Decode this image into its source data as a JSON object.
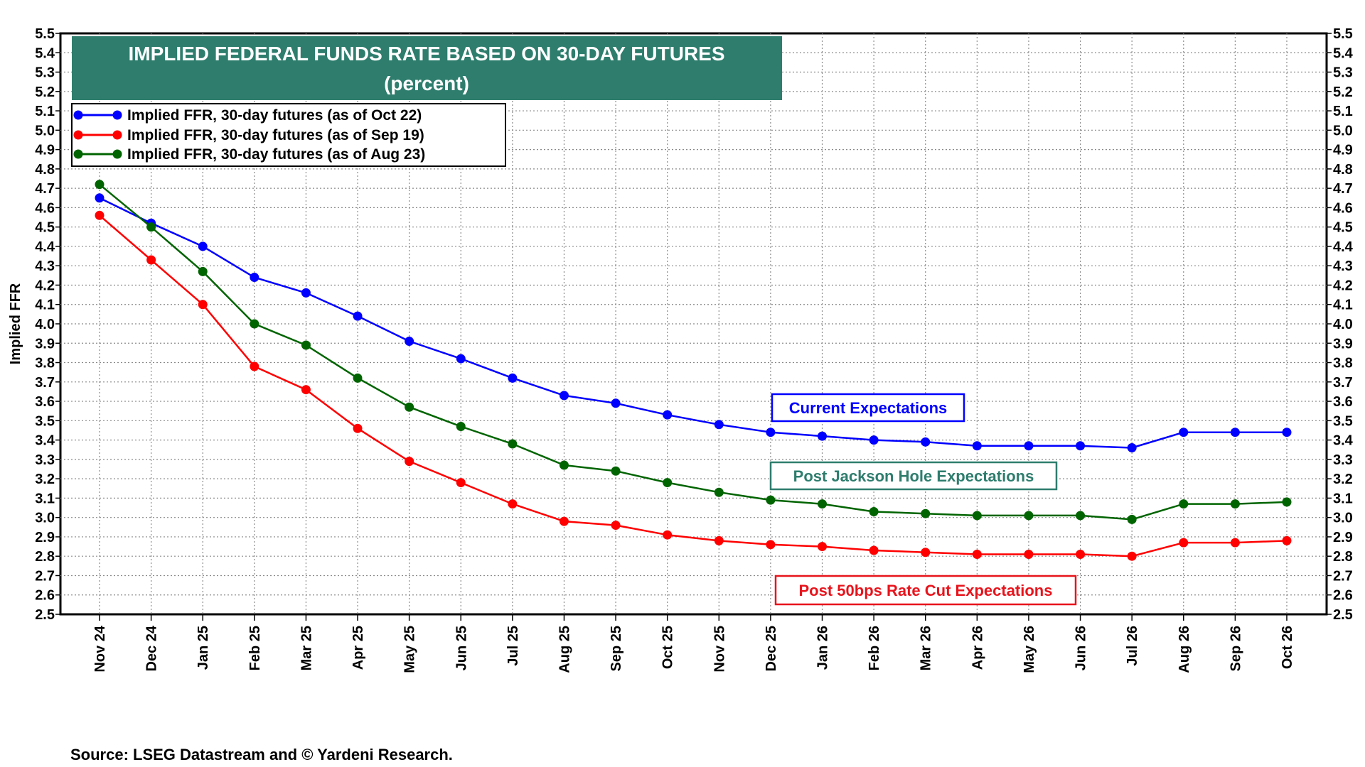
{
  "chart_data": {
    "type": "line",
    "title": "IMPLIED FEDERAL FUNDS RATE BASED ON 30-DAY FUTURES",
    "subtitle": "(percent)",
    "ylabel": "Implied FFR",
    "xlabel": "",
    "ylim": [
      2.5,
      5.5
    ],
    "yticks": [
      "5.5",
      "5.4",
      "5.3",
      "5.2",
      "5.1",
      "5.0",
      "4.9",
      "4.8",
      "4.7",
      "4.6",
      "4.5",
      "4.4",
      "4.3",
      "4.2",
      "4.1",
      "4.0",
      "3.9",
      "3.8",
      "3.7",
      "3.6",
      "3.5",
      "3.4",
      "3.3",
      "3.2",
      "3.1",
      "3.0",
      "2.9",
      "2.8",
      "2.7",
      "2.6",
      "2.5"
    ],
    "categories": [
      "Nov 24",
      "Dec 24",
      "Jan 25",
      "Feb 25",
      "Mar 25",
      "Apr 25",
      "May 25",
      "Jun 25",
      "Jul 25",
      "Aug 25",
      "Sep 25",
      "Oct 25",
      "Nov 25",
      "Dec 25",
      "Jan 26",
      "Feb 26",
      "Mar 26",
      "Apr 26",
      "May 26",
      "Jun 26",
      "Jul 26",
      "Aug 26",
      "Sep 26",
      "Oct 26"
    ],
    "grid": true,
    "legend_position": "top-left",
    "series": [
      {
        "name": "Implied FFR, 30-day futures (as of Oct 22)",
        "color": "#0000ff",
        "values": [
          4.65,
          4.52,
          4.4,
          4.24,
          4.16,
          4.04,
          3.91,
          3.82,
          3.72,
          3.63,
          3.59,
          3.53,
          3.48,
          3.44,
          3.42,
          3.4,
          3.39,
          3.37,
          3.37,
          3.37,
          3.36,
          3.44,
          3.44,
          3.44
        ]
      },
      {
        "name": "Implied FFR, 30-day futures (as of Sep 19)",
        "color": "#ff0000",
        "values": [
          4.56,
          4.33,
          4.1,
          3.78,
          3.66,
          3.46,
          3.29,
          3.18,
          3.07,
          2.98,
          2.96,
          2.91,
          2.88,
          2.86,
          2.85,
          2.83,
          2.82,
          2.81,
          2.81,
          2.81,
          2.8,
          2.87,
          2.87,
          2.88
        ]
      },
      {
        "name": "Implied FFR, 30-day futures (as of Aug 23)",
        "color": "#006400",
        "values": [
          4.72,
          4.5,
          4.27,
          4.0,
          3.89,
          3.72,
          3.57,
          3.47,
          3.38,
          3.27,
          3.24,
          3.18,
          3.13,
          3.09,
          3.07,
          3.03,
          3.02,
          3.01,
          3.01,
          3.01,
          2.99,
          3.07,
          3.07,
          3.08
        ]
      }
    ],
    "annotations": [
      {
        "text": "Current Expectations",
        "color": "#0000ff"
      },
      {
        "text": "Post Jackson Hole Expectations",
        "color": "#2e7d6d"
      },
      {
        "text": "Post 50bps Rate Cut Expectations",
        "color": "#e8141c"
      }
    ]
  },
  "colors": {
    "title_bg": "#2e7d6d"
  },
  "source": "Source: LSEG Datastream and © Yardeni Research."
}
